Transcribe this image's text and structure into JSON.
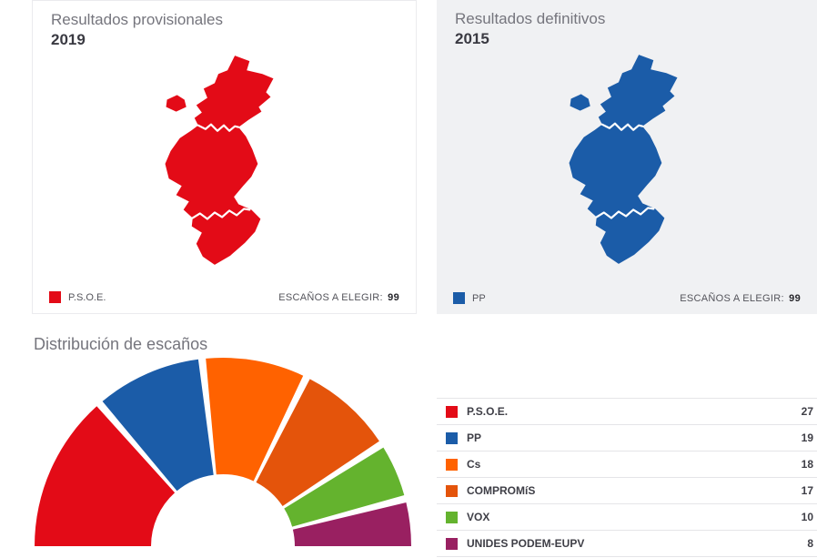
{
  "panels": [
    {
      "subtitle": "Resultados provisionales",
      "year": "2019",
      "legend": {
        "label": "P.S.O.E.",
        "color": "#e30b17"
      },
      "seats_to_elect_label": "ESCAÑOS A ELEGIR:",
      "seats_to_elect_value": "99",
      "map_color": "#e30b17"
    },
    {
      "subtitle": "Resultados definitivos",
      "year": "2015",
      "legend": {
        "label": "PP",
        "color": "#1b5ca8"
      },
      "seats_to_elect_label": "ESCAÑOS A ELEGIR:",
      "seats_to_elect_value": "99",
      "map_color": "#1b5ca8"
    }
  ],
  "seats_section": {
    "title": "Distribución de escaños"
  },
  "chart_data": {
    "type": "pie",
    "variant": "hemicycle-donut",
    "title": "Distribución de escaños",
    "categories": [
      "P.S.O.E.",
      "PP",
      "Cs",
      "COMPROMíS",
      "VOX",
      "UNIDES PODEM-EUPV"
    ],
    "values": [
      27,
      19,
      18,
      17,
      10,
      8
    ],
    "colors": [
      "#e30b17",
      "#1b5ca8",
      "#ff6200",
      "#e4540b",
      "#64b32e",
      "#992061"
    ],
    "total": 99,
    "layout": {
      "span_degrees": 180,
      "inner_radius_ratio": 0.38,
      "legend_position": "right-table",
      "grid": false
    }
  }
}
